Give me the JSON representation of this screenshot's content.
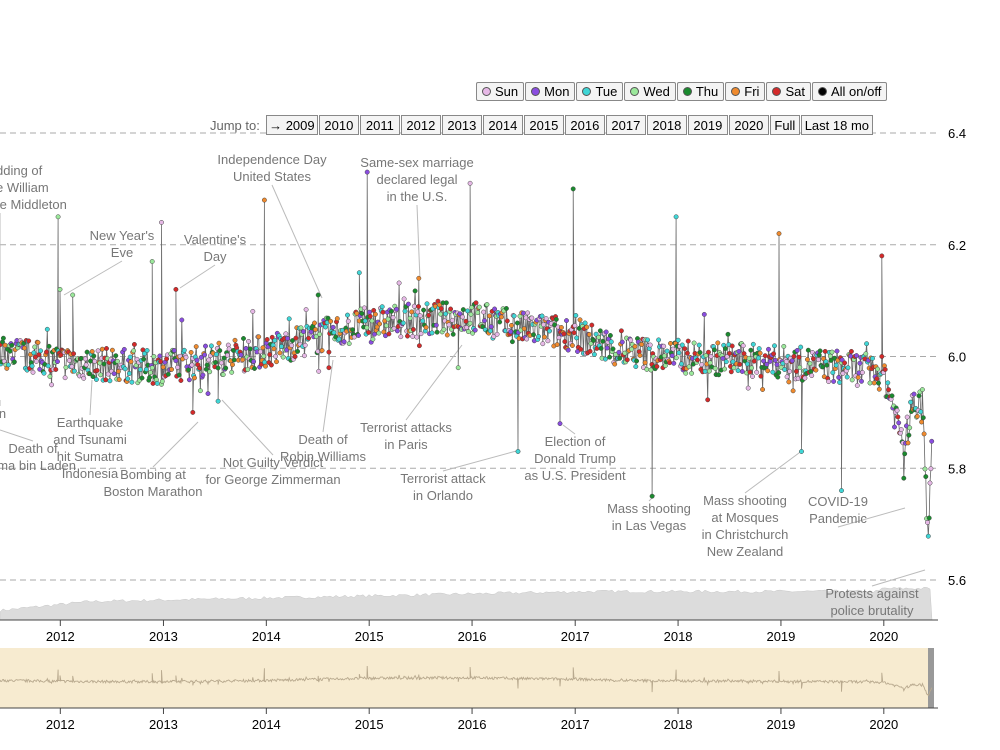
{
  "legend": [
    {
      "label": "Sun",
      "color": "#e6b8e6"
    },
    {
      "label": "Mon",
      "color": "#8a4de0"
    },
    {
      "label": "Tue",
      "color": "#3fd6d6"
    },
    {
      "label": "Wed",
      "color": "#9be89b"
    },
    {
      "label": "Thu",
      "color": "#1a8a2e"
    },
    {
      "label": "Fri",
      "color": "#ef8a2e"
    },
    {
      "label": "Sat",
      "color": "#d42a2a"
    },
    {
      "label": "All on/off",
      "color": "#000000"
    }
  ],
  "jump": {
    "label": "Jump to:",
    "buttons": [
      "→ 2009",
      "2010",
      "2011",
      "2012",
      "2013",
      "2014",
      "2015",
      "2016",
      "2017",
      "2018",
      "2019",
      "2020",
      "Full",
      "Last 18 mo"
    ]
  },
  "chart_data": {
    "type": "line",
    "x_type": "date",
    "xlim": [
      "2011-06-01",
      "2020-06-20"
    ],
    "ylim": [
      5.52,
      6.42
    ],
    "y_ticks": [
      5.6,
      5.8,
      6.0,
      6.2,
      6.4
    ],
    "x_ticks": [
      "2012",
      "2013",
      "2014",
      "2015",
      "2016",
      "2017",
      "2018",
      "2019",
      "2020"
    ],
    "grid": "horizontal dashed",
    "series_note": "daily happiness values colored by day of week",
    "trend": [
      [
        "2011-06-01",
        6.01
      ],
      [
        "2012-01-01",
        5.99
      ],
      [
        "2013-01-01",
        5.98
      ],
      [
        "2014-01-01",
        6.01
      ],
      [
        "2015-01-01",
        6.06
      ],
      [
        "2016-01-01",
        6.07
      ],
      [
        "2016-07-01",
        6.05
      ],
      [
        "2017-01-01",
        6.04
      ],
      [
        "2017-06-01",
        6.01
      ],
      [
        "2018-01-01",
        6.0
      ],
      [
        "2019-01-01",
        5.99
      ],
      [
        "2019-09-01",
        5.98
      ],
      [
        "2020-01-01",
        5.97
      ],
      [
        "2020-03-15",
        5.84
      ],
      [
        "2020-04-15",
        5.92
      ],
      [
        "2020-05-20",
        5.91
      ],
      [
        "2020-06-05",
        5.68
      ],
      [
        "2020-06-20",
        5.84
      ]
    ],
    "spikes": [
      [
        "2011-12-24",
        6.25
      ],
      [
        "2011-12-31",
        6.12
      ],
      [
        "2012-02-14",
        6.11
      ],
      [
        "2012-11-22",
        6.17
      ],
      [
        "2012-12-25",
        6.24
      ],
      [
        "2013-02-14",
        6.12
      ],
      [
        "2013-04-15",
        5.9
      ],
      [
        "2013-07-14",
        5.92
      ],
      [
        "2013-12-25",
        6.28
      ],
      [
        "2014-07-04",
        6.11
      ],
      [
        "2014-08-11",
        5.98
      ],
      [
        "2014-11-27",
        6.15
      ],
      [
        "2014-12-25",
        6.33
      ],
      [
        "2015-06-26",
        6.14
      ],
      [
        "2015-11-13",
        5.98
      ],
      [
        "2015-12-25",
        6.31
      ],
      [
        "2016-06-12",
        5.83
      ],
      [
        "2016-11-08",
        5.88
      ],
      [
        "2016-12-25",
        6.3
      ],
      [
        "2017-10-01",
        5.75
      ],
      [
        "2017-12-25",
        6.25
      ],
      [
        "2018-12-25",
        6.22
      ],
      [
        "2019-03-15",
        5.83
      ],
      [
        "2019-08-04",
        5.76
      ],
      [
        "2019-12-25",
        6.18
      ]
    ],
    "volume_note": "gray area at bottom shows tweet volume",
    "overview_note": "overview brush panel with full series",
    "annotations": [
      {
        "lines": [
          "dding of",
          "e William",
          "te Middleton"
        ]
      },
      {
        "lines": [
          "New Year's",
          "Eve"
        ]
      },
      {
        "lines": [
          "Valentine's",
          "Day"
        ]
      },
      {
        "lines": [
          "Independence Day",
          "United States"
        ]
      },
      {
        "lines": [
          "Same-sex marriage",
          "declared legal",
          "in the U.S."
        ]
      },
      {
        "lines": [
          "in"
        ]
      },
      {
        "lines": [
          "Death of",
          "ama bin Laden"
        ]
      },
      {
        "lines": [
          "Earthquake",
          "and Tsunami",
          "hit Sumatra",
          "Indonesia"
        ]
      },
      {
        "lines": [
          "Bombing at",
          "Boston Marathon"
        ]
      },
      {
        "lines": [
          "Not Guilty Verdict",
          "for George Zimmerman"
        ]
      },
      {
        "lines": [
          "Death of",
          "Robin Williams"
        ]
      },
      {
        "lines": [
          "Terrorist attacks",
          "in Paris"
        ]
      },
      {
        "lines": [
          "Terrorist attack",
          "in Orlando"
        ]
      },
      {
        "lines": [
          "Election of",
          "Donald Trump",
          "as U.S. President"
        ]
      },
      {
        "lines": [
          "Mass shooting",
          "in Las Vegas"
        ]
      },
      {
        "lines": [
          "Mass shooting",
          "at Mosques",
          "in Christchurch",
          "New Zealand"
        ]
      },
      {
        "lines": [
          "COVID-19",
          "Pandemic"
        ]
      },
      {
        "lines": [
          "Protests against",
          "police brutality"
        ]
      }
    ]
  }
}
